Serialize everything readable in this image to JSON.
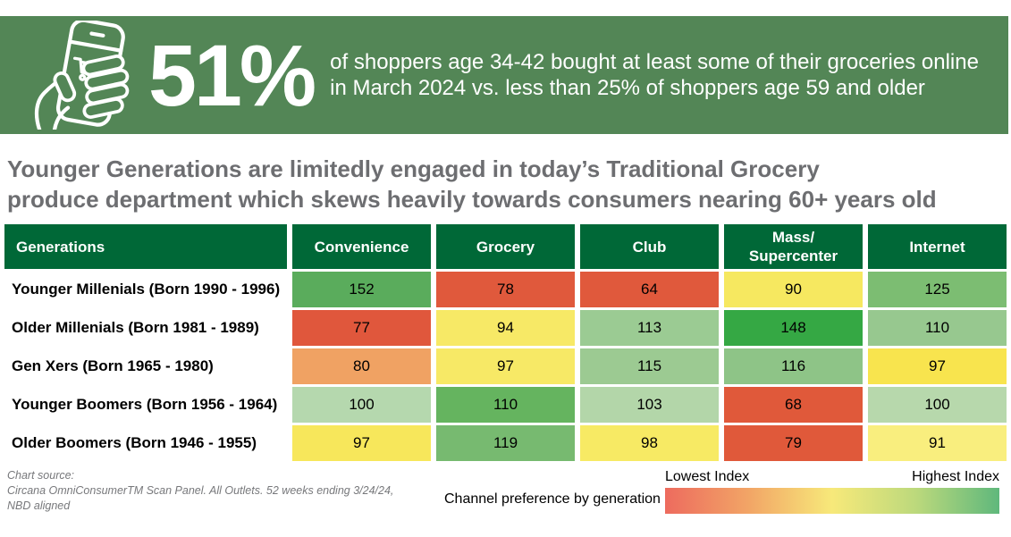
{
  "banner": {
    "bg_color": "#538656",
    "stat": "51%",
    "description_line1": "of shoppers age 34-42 bought at least some of their groceries online",
    "description_line2": "in March 2024 vs. less than 25% of shoppers age 59 and older",
    "icon": "hand-holding-phone-with-shopping-cart"
  },
  "headline": {
    "line1": "Younger Generations are limitedly engaged in today’s Traditional Grocery",
    "line2": "produce department which skews heavily towards consumers nearing 60+ years old"
  },
  "chart_data": {
    "type": "heatmap",
    "title": "Channel preference by generation",
    "corner_header": "Generations",
    "header_bg": "#006837",
    "columns": [
      "Convenience",
      "Grocery",
      "Club",
      "Mass/\nSupercenter",
      "Internet"
    ],
    "rows": [
      {
        "label": "Younger Millenials (Born 1990 - 1996)",
        "values": [
          152,
          78,
          64,
          90,
          125
        ],
        "colors": [
          "#5aac5c",
          "#e0593c",
          "#e0593c",
          "#f6e860",
          "#7cbd72"
        ]
      },
      {
        "label": "Older Millenials (Born 1981 - 1989)",
        "values": [
          77,
          94,
          113,
          148,
          110
        ],
        "colors": [
          "#e0573c",
          "#f7e966",
          "#9bcb93",
          "#35a844",
          "#97c88f"
        ]
      },
      {
        "label": "Gen Xers (Born 1965 - 1980)",
        "values": [
          80,
          97,
          115,
          116,
          97
        ],
        "colors": [
          "#f0a263",
          "#f7e966",
          "#9cca92",
          "#8ec487",
          "#f8e44e"
        ]
      },
      {
        "label": "Younger Boomers (Born 1956 - 1964)",
        "values": [
          100,
          110,
          103,
          68,
          100
        ],
        "colors": [
          "#b5d8ae",
          "#65b45f",
          "#b3d6a9",
          "#e0593a",
          "#b7d8ac"
        ]
      },
      {
        "label": "Older Boomers (Born 1946 - 1955)",
        "values": [
          97,
          119,
          98,
          79,
          91
        ],
        "colors": [
          "#f7e75b",
          "#77ba70",
          "#f7ea64",
          "#e0593a",
          "#f9ee7e"
        ]
      }
    ],
    "value_range": [
      64,
      152
    ],
    "scale_gradient": [
      "#ed6b5e",
      "#f2a566",
      "#f7e97a",
      "#bcd97c",
      "#5fb87c"
    ]
  },
  "legend": {
    "caption": "Channel preference by generation >",
    "low_label": "Lowest Index",
    "high_label": "Highest Index"
  },
  "footer": {
    "source_line1": "Chart source:",
    "source_line2": "Circana OmniConsumerTM Scan Panel. All Outlets. 52 weeks ending 3/24/24,",
    "source_line3": "NBD aligned"
  }
}
